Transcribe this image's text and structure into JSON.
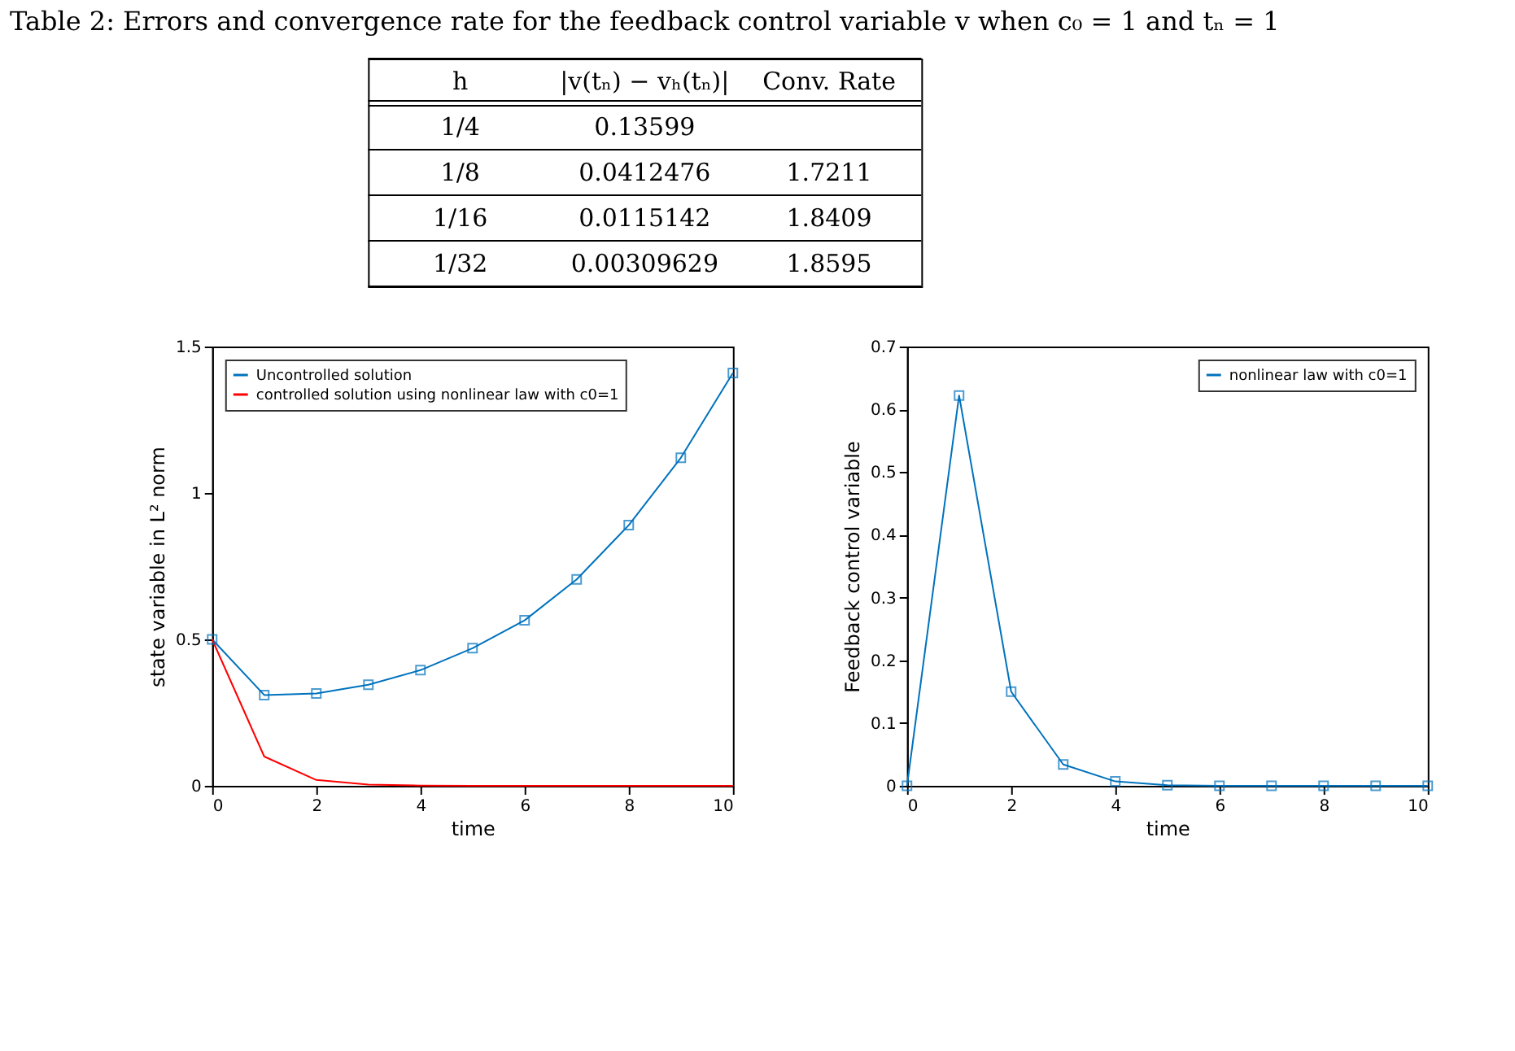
{
  "chart_data": [
    {
      "type": "other",
      "title": "Table 2: Errors and convergence rate for the feedback control variable v when c₀ = 1 and tₙ = 1",
      "categories": [
        "h",
        "|v(tₙ) − vₕ(tₙ)|",
        "Conv. Rate"
      ],
      "cell_labels": [
        [
          "1/4",
          "0.13599",
          null
        ],
        [
          "1/8",
          "0.0412476",
          "1.7211"
        ],
        [
          "1/16",
          "0.0115142",
          "1.8409"
        ],
        [
          "1/32",
          "0.00309629",
          "1.8595"
        ]
      ]
    },
    {
      "type": "line",
      "xlabel": "time",
      "ylabel": "state variable in L² norm",
      "x": [
        0,
        1,
        2,
        3,
        4,
        5,
        6,
        7,
        8,
        9,
        10
      ],
      "xlim": [
        0,
        10
      ],
      "xticks": [
        0,
        2,
        4,
        6,
        8,
        10
      ],
      "ylim": [
        0,
        1.5
      ],
      "yticks": [
        0,
        0.5,
        1,
        1.5
      ],
      "grid": false,
      "legend": "top left",
      "series": [
        {
          "name": "Uncontrolled solution",
          "color": "#0072bd",
          "marker": "square",
          "values": [
            0.5,
            0.31,
            0.315,
            0.345,
            0.395,
            0.47,
            0.565,
            0.705,
            0.89,
            1.12,
            1.41
          ]
        },
        {
          "name": "controlled solution using nonlinear law with c0=1",
          "color": "#ff0000",
          "marker": "none",
          "values": [
            0.5,
            0.1,
            0.02,
            0.004,
            0.001,
            0,
            0,
            0,
            0,
            0,
            0
          ]
        }
      ]
    },
    {
      "type": "line",
      "xlabel": "time",
      "ylabel": "Feedback control variable",
      "x": [
        0,
        1,
        2,
        3,
        4,
        5,
        6,
        7,
        8,
        9,
        10
      ],
      "xlim": [
        0,
        10
      ],
      "xticks": [
        0,
        2,
        4,
        6,
        8,
        10
      ],
      "ylim": [
        0,
        0.7
      ],
      "yticks": [
        0,
        0.1,
        0.2,
        0.3,
        0.4,
        0.5,
        0.6,
        0.7
      ],
      "grid": false,
      "legend": "top right",
      "series": [
        {
          "name": "nonlinear law with c0=1",
          "color": "#0072bd",
          "marker": "square",
          "values": [
            0,
            0.622,
            0.15,
            0.034,
            0.007,
            0.001,
            0,
            0,
            0,
            0,
            0
          ]
        }
      ]
    }
  ]
}
